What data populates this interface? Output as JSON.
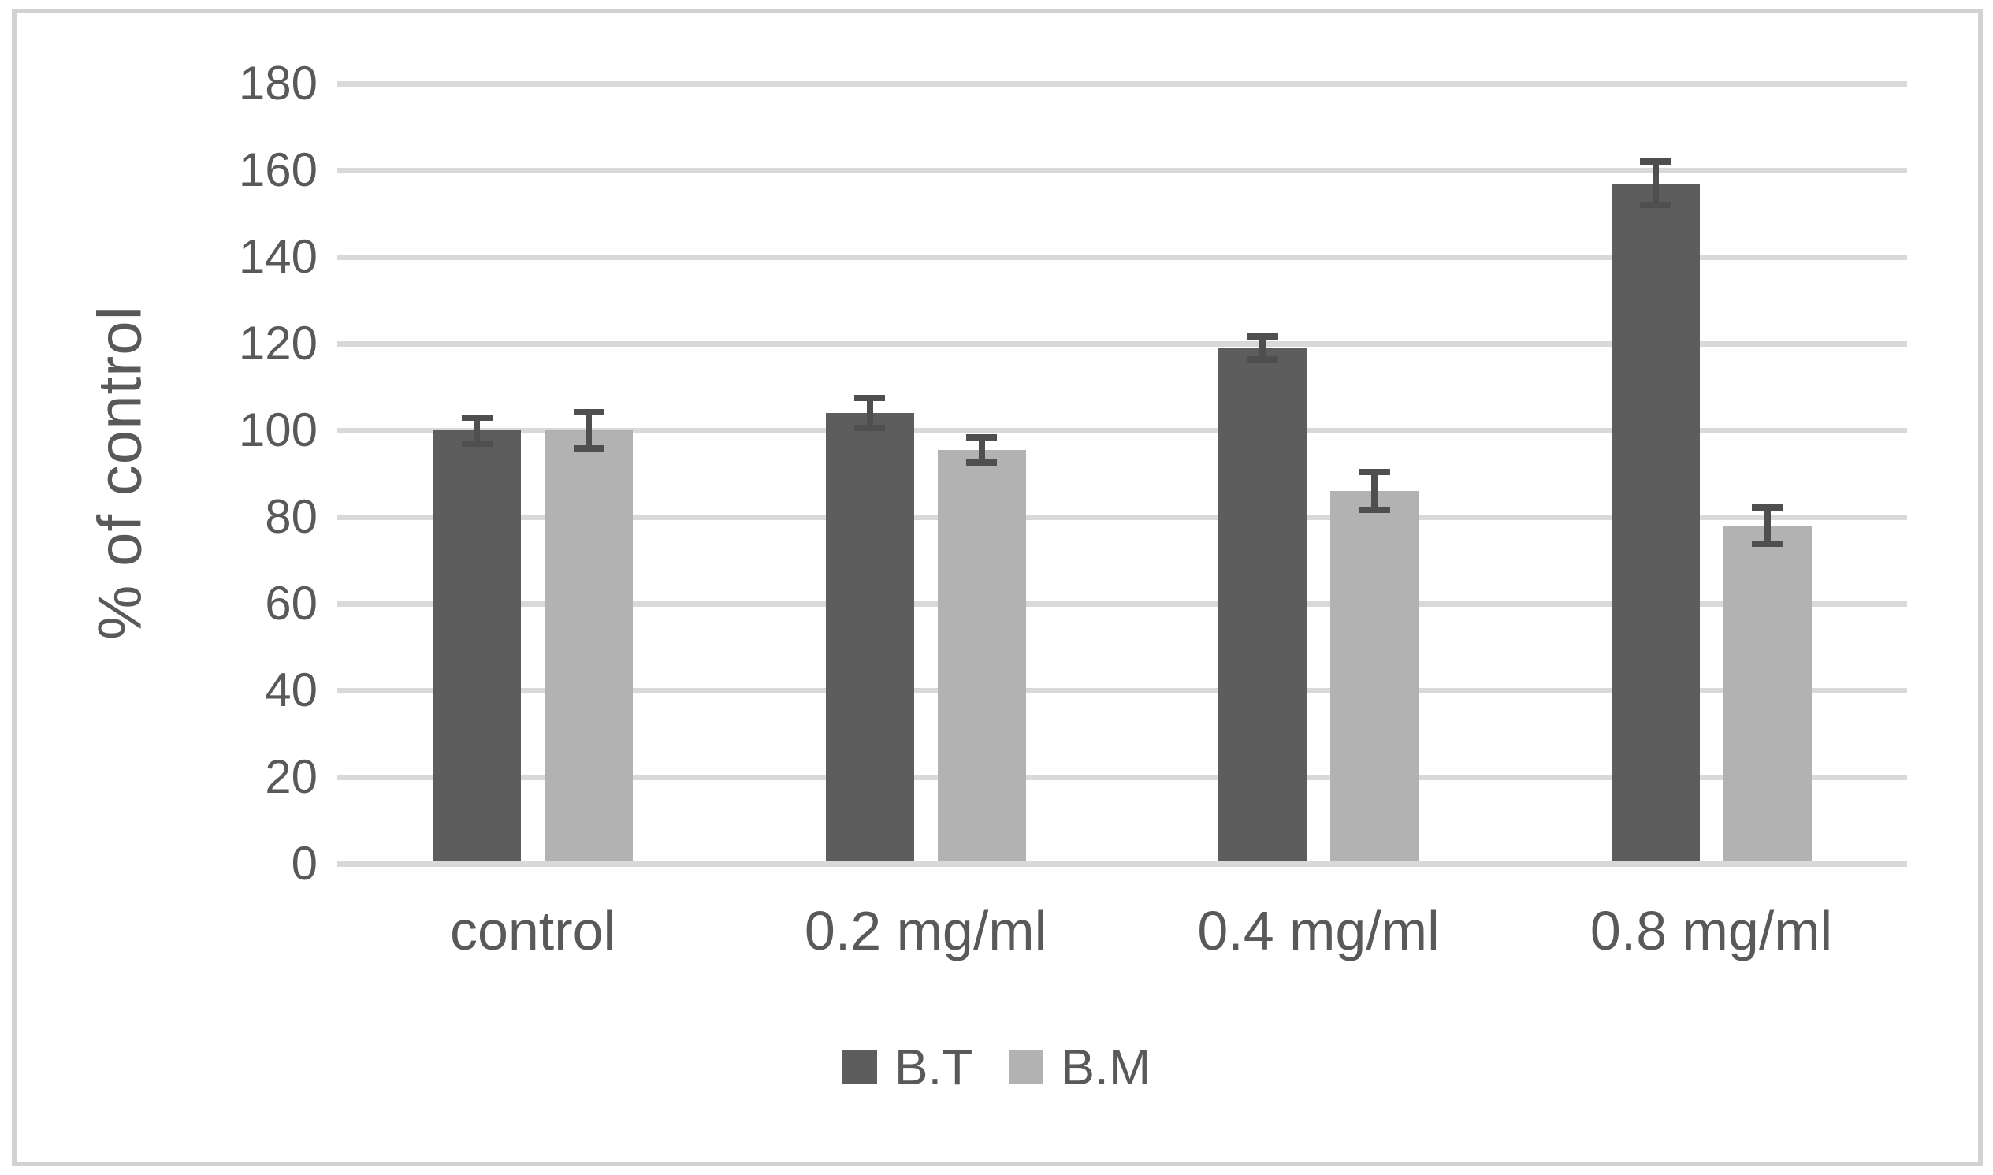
{
  "chart_data": {
    "type": "bar",
    "title": "",
    "xlabel": "",
    "ylabel": "% of control",
    "categories": [
      "control",
      "0.2 mg/ml",
      "0.4 mg/ml",
      "0.8 mg/ml"
    ],
    "series": [
      {
        "name": "B.T",
        "color": "#5d5d5d",
        "values": [
          100,
          104,
          119,
          157
        ],
        "errors": [
          3,
          3.4,
          2.7,
          5
        ]
      },
      {
        "name": "B.M",
        "color": "#b2b2b2",
        "values": [
          100,
          95.5,
          86,
          78
        ],
        "errors": [
          4.2,
          2.9,
          4.4,
          4.1
        ]
      }
    ],
    "ylim": [
      0,
      180
    ],
    "ytick_step": 20,
    "y_tick_labels": [
      "0",
      "20",
      "40",
      "60",
      "80",
      "100",
      "120",
      "140",
      "160",
      "180"
    ],
    "grid": "horizontal",
    "legend_position": "bottom",
    "colors": {
      "error_bar": "#4f4f4f",
      "gridline": "#d9d9d9",
      "text": "#595959",
      "frame_border": "#d2d2d2",
      "background": "#ffffff"
    }
  }
}
